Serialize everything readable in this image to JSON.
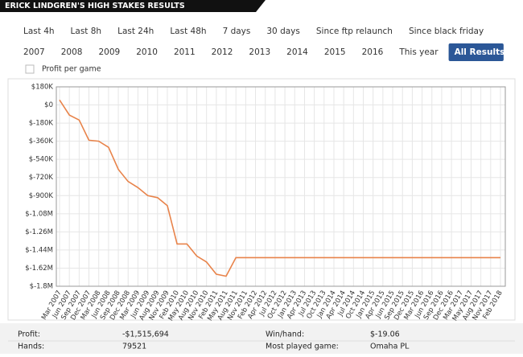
{
  "header": {
    "title": "ERICK LINDGREN'S HIGH STAKES RESULTS"
  },
  "filters": [
    [
      {
        "label": "Last 4h"
      },
      {
        "label": "Last 8h"
      },
      {
        "label": "Last 24h"
      },
      {
        "label": "Last 48h"
      },
      {
        "label": "7 days"
      },
      {
        "label": "30 days"
      },
      {
        "label": "Since ftp relaunch"
      },
      {
        "label": "Since black friday"
      }
    ],
    [
      {
        "label": "2007"
      },
      {
        "label": "2008"
      },
      {
        "label": "2009"
      },
      {
        "label": "2010"
      },
      {
        "label": "2011"
      },
      {
        "label": "2012"
      },
      {
        "label": "2013"
      },
      {
        "label": "2014"
      },
      {
        "label": "2015"
      },
      {
        "label": "2016"
      },
      {
        "label": "This year"
      },
      {
        "label": "All Results",
        "selected": true
      }
    ]
  ],
  "chart_data": {
    "type": "line",
    "categories": [
      "Mar 2007",
      "Jun 2007",
      "Sep 2007",
      "Dec 2007",
      "Mar 2008",
      "Jun 2008",
      "Sep 2008",
      "Dec 2008",
      "Mar 2009",
      "Jun 2009",
      "Aug 2009",
      "Nov 2009",
      "Feb 2010",
      "May 2010",
      "Aug 2010",
      "Nov 2010",
      "Feb 2011",
      "May 2011",
      "Aug 2011",
      "Nov 2011",
      "Feb 2012",
      "Apr 2012",
      "Jul 2012",
      "Oct 2012",
      "Jan 2013",
      "Apr 2013",
      "Jul 2013",
      "Oct 2013",
      "Jan 2014",
      "Apr 2014",
      "Jul 2014",
      "Oct 2014",
      "Jan 2015",
      "Apr 2015",
      "Jun 2015",
      "Sep 2015",
      "Dec 2015",
      "Mar 2016",
      "Jun 2016",
      "Sep 2016",
      "Dec 2016",
      "Mar 2017",
      "May 2017",
      "Aug 2017",
      "Nov 2017",
      "Feb 2018"
    ],
    "series": [
      {
        "name": "Profit per game",
        "color": "#e8834a",
        "values": [
          50000,
          -100000,
          -150000,
          -350000,
          -360000,
          -420000,
          -640000,
          -760000,
          -820000,
          -900000,
          -920000,
          -1000000,
          -1380000,
          -1380000,
          -1500000,
          -1560000,
          -1680000,
          -1700000,
          -1515694,
          -1515694,
          -1515694,
          -1515694,
          -1515694,
          -1515694,
          -1515694,
          -1515694,
          -1515694,
          -1515694,
          -1515694,
          -1515694,
          -1515694,
          -1515694,
          -1515694,
          -1515694,
          -1515694,
          -1515694,
          -1515694,
          -1515694,
          -1515694,
          -1515694,
          -1515694,
          -1515694,
          -1515694,
          -1515694,
          -1515694,
          -1515694
        ]
      }
    ],
    "ylim": [
      -1800000,
      180000
    ],
    "yticks": [
      {
        "value": 180000,
        "label": "$180K"
      },
      {
        "value": 0,
        "label": "$0"
      },
      {
        "value": -180000,
        "label": "$-180K"
      },
      {
        "value": -360000,
        "label": "$-360K"
      },
      {
        "value": -540000,
        "label": "$-540K"
      },
      {
        "value": -720000,
        "label": "$-720K"
      },
      {
        "value": -900000,
        "label": "$-900K"
      },
      {
        "value": -1080000,
        "label": "$-1.08M"
      },
      {
        "value": -1260000,
        "label": "$-1.26M"
      },
      {
        "value": -1440000,
        "label": "$-1.44M"
      },
      {
        "value": -1620000,
        "label": "$-1.62M"
      },
      {
        "value": -1800000,
        "label": "$-1.8M"
      }
    ],
    "grid": true
  },
  "stats": [
    [
      {
        "label": "Profit:",
        "value": "-$1,515,694"
      },
      {
        "label": "Win/hand:",
        "value": "$-19.06"
      }
    ],
    [
      {
        "label": "Hands:",
        "value": "79521"
      },
      {
        "label": "Most played game:",
        "value": "Omaha PL"
      }
    ]
  ]
}
